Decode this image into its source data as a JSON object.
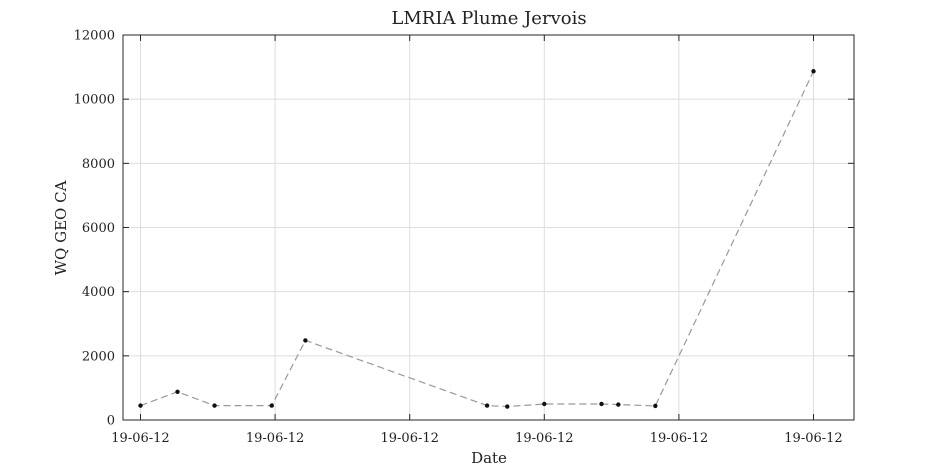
{
  "chart_data": {
    "type": "line",
    "title": "LMRIA Plume Jervois",
    "xlabel": "Date",
    "ylabel": "WQ GEO CA",
    "x_tick_labels": [
      "19-06-12",
      "19-06-12",
      "19-06-12",
      "19-06-12",
      "19-06-12",
      "19-06-12"
    ],
    "x_range": [
      0,
      10.7
    ],
    "y_ticks": [
      0,
      2000,
      4000,
      6000,
      8000,
      10000,
      12000
    ],
    "y_tick_labels": [
      "0",
      "2000",
      "4000",
      "6000",
      "8000",
      "10000",
      "12000"
    ],
    "ylim": [
      0,
      12000
    ],
    "grid": true,
    "series": [
      {
        "color": "#999999",
        "marker_color": "#111111",
        "x": [
          0.0,
          0.55,
          1.1,
          1.95,
          2.45,
          5.15,
          5.45,
          6.0,
          6.85,
          7.1,
          7.65,
          10.0
        ],
        "y": [
          450,
          880,
          450,
          450,
          2480,
          450,
          420,
          500,
          500,
          480,
          440,
          10870
        ]
      }
    ]
  }
}
